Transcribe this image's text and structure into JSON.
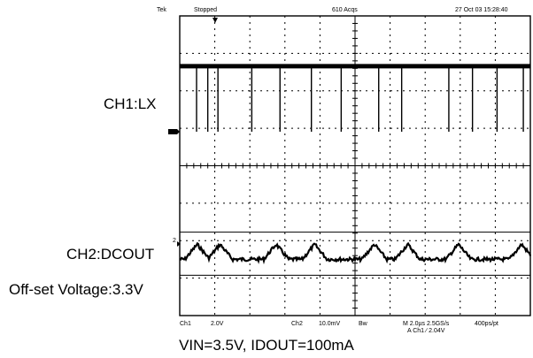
{
  "header": {
    "brand": "Tek",
    "run_state": "Stopped",
    "acquisitions": "610 Acqs",
    "timestamp": "27 Oct 03 15:28:40"
  },
  "footer": {
    "ch1_name": "Ch1",
    "ch1_scale": "2.0V",
    "ch2_name": "Ch2",
    "ch2_scale": "10.0mV",
    "bw": "Bw",
    "timebase": "M 2.0µs 2.5GS/s",
    "trigger": "A  Ch1  ∕  2.04V",
    "resolution": "400ps/pt"
  },
  "markers": {
    "ch2_marker": "2"
  },
  "labels": {
    "ch1": "CH1:LX",
    "ch2": "CH2:DCOUT",
    "offset": "Off-set Voltage:3.3V"
  },
  "caption": "VIN=3.5V, IDOUT=100mA",
  "colors": {
    "background": "#ffffff",
    "trace": "#000000",
    "grid": "#000000"
  },
  "chart_data": {
    "type": "line",
    "title": "",
    "x_unit": "µs",
    "x_range": [
      0,
      20
    ],
    "grid": true,
    "series": [
      {
        "name": "CH1:LX",
        "unit": "V",
        "volts_per_div": 2.0,
        "high_level": 3.5,
        "low_level": 0,
        "pulse_times_us": [
          0.96,
          1.6,
          2.18,
          4.11,
          5.72,
          7.51,
          9.21,
          11.35,
          12.66,
          15.35,
          16.7,
          18.1,
          19.6
        ]
      },
      {
        "name": "CH2:DCOUT",
        "unit": "mV",
        "volts_per_div": 10.0,
        "offset_v": 3.3,
        "ripple_peak_to_peak_mv": 5,
        "ripple_peak_times_us": [
          1.0,
          2.3,
          5.5,
          7.7,
          11.1,
          13.0,
          15.9,
          19.5
        ]
      }
    ]
  }
}
